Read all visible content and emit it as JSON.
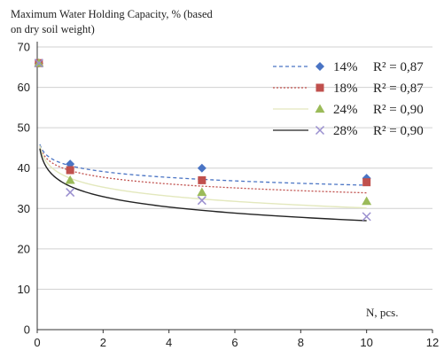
{
  "chart_data": {
    "type": "scatter",
    "title_lines": [
      "Maximum Water Holding Capacity, % (based",
      "on dry soil weight)"
    ],
    "xlabel": "N, pcs.",
    "ylabel": "",
    "xlim": [
      0,
      12
    ],
    "ylim": [
      0,
      70
    ],
    "xticks": [
      0,
      2,
      4,
      6,
      8,
      10,
      12
    ],
    "yticks": [
      0,
      10,
      20,
      30,
      40,
      50,
      60,
      70
    ],
    "x": [
      0.05,
      1,
      5,
      10
    ],
    "grid": "horizontal",
    "legend_position": "top-right",
    "series": [
      {
        "name": "14%",
        "r2": "R² = 0,87",
        "marker": "diamond",
        "color": "#4a74c4",
        "trend_style": "dashed",
        "values": [
          66,
          41,
          40,
          37.5
        ],
        "trend": {
          "type": "log",
          "a": 40.6,
          "b": -2.1
        }
      },
      {
        "name": "18%",
        "r2": "R² = 0,87",
        "marker": "square",
        "color": "#c0504d",
        "trend_style": "dotted",
        "values": [
          66,
          39.5,
          37,
          36.5
        ],
        "trend": {
          "type": "log",
          "a": 39.4,
          "b": -2.4
        }
      },
      {
        "name": "24%",
        "r2": "R² = 0,90",
        "marker": "triangle",
        "color": "#9bbb59",
        "trend_style": "solid-light",
        "values": [
          66,
          37,
          34,
          31.8
        ],
        "trend": {
          "type": "log",
          "a": 37.5,
          "b": -3.2
        }
      },
      {
        "name": "28%",
        "r2": "R² = 0,90",
        "marker": "x",
        "color": "#9a8fcf",
        "trend_style": "solid-dark",
        "values": [
          66,
          34,
          32,
          28
        ],
        "trend": {
          "type": "log",
          "a": 35.5,
          "b": -3.7
        }
      }
    ]
  },
  "colors": {
    "axis": "#333333",
    "grid": "#d0d0d0",
    "trend_dark": "#222222",
    "trend_light": "#e3e8bd"
  }
}
